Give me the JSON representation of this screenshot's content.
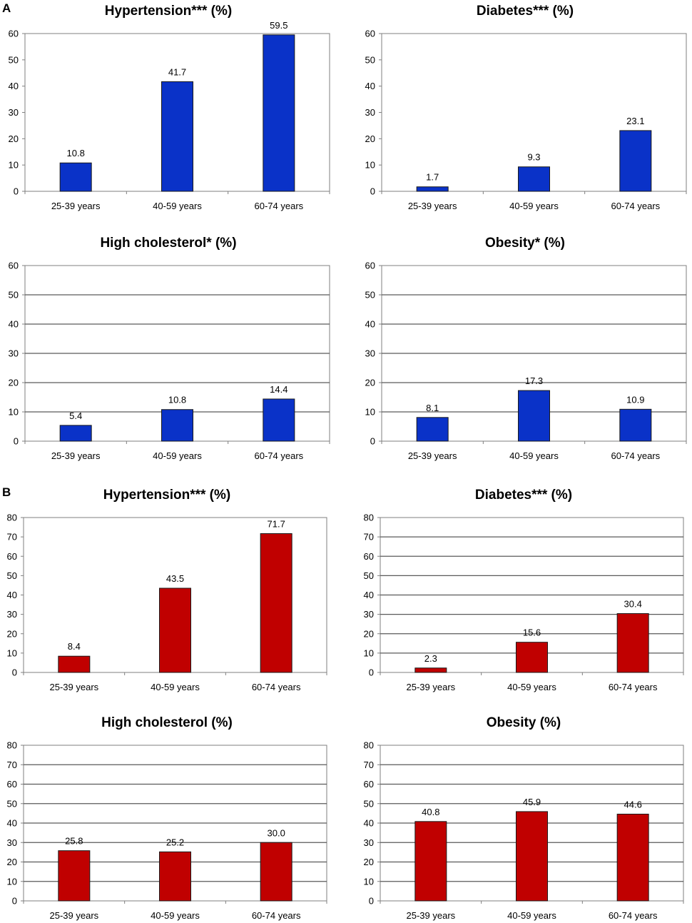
{
  "panels": [
    {
      "letter": "A",
      "bar_color": "#0a32c8"
    },
    {
      "letter": "B",
      "bar_color": "#c00000"
    }
  ],
  "chart_data": [
    {
      "panel": "A",
      "type": "bar",
      "title": "Hypertension*** (%)",
      "categories": [
        "25-39 years",
        "40-59 years",
        "60-74 years"
      ],
      "values": [
        10.8,
        41.7,
        59.5
      ],
      "value_labels": [
        "10.8",
        "41.7",
        "59.5"
      ],
      "ylim": [
        0,
        60
      ],
      "yticks": [
        0,
        10,
        20,
        30,
        40,
        50,
        60
      ],
      "grid": false,
      "xlabel": "",
      "ylabel": "",
      "color": "#0a32c8"
    },
    {
      "panel": "A",
      "type": "bar",
      "title": "Diabetes*** (%)",
      "categories": [
        "25-39 years",
        "40-59 years",
        "60-74 years"
      ],
      "values": [
        1.7,
        9.3,
        23.1
      ],
      "value_labels": [
        "1.7",
        "9.3",
        "23.1"
      ],
      "ylim": [
        0,
        60
      ],
      "yticks": [
        0,
        10,
        20,
        30,
        40,
        50,
        60
      ],
      "grid": false,
      "xlabel": "",
      "ylabel": "",
      "color": "#0a32c8"
    },
    {
      "panel": "A",
      "type": "bar",
      "title": "High cholesterol* (%)",
      "categories": [
        "25-39 years",
        "40-59 years",
        "60-74 years"
      ],
      "values": [
        5.4,
        10.8,
        14.4
      ],
      "value_labels": [
        "5.4",
        "10.8",
        "14.4"
      ],
      "ylim": [
        0,
        60
      ],
      "yticks": [
        0,
        10,
        20,
        30,
        40,
        50,
        60
      ],
      "grid": true,
      "xlabel": "",
      "ylabel": "",
      "color": "#0a32c8"
    },
    {
      "panel": "A",
      "type": "bar",
      "title": "Obesity* (%)",
      "categories": [
        "25-39 years",
        "40-59 years",
        "60-74 years"
      ],
      "values": [
        8.1,
        17.3,
        10.9
      ],
      "value_labels": [
        "8.1",
        "17.3",
        "10.9"
      ],
      "ylim": [
        0,
        60
      ],
      "yticks": [
        0,
        10,
        20,
        30,
        40,
        50,
        60
      ],
      "grid": true,
      "xlabel": "",
      "ylabel": "",
      "color": "#0a32c8"
    },
    {
      "panel": "B",
      "type": "bar",
      "title": "Hypertension*** (%)",
      "categories": [
        "25-39 years",
        "40-59 years",
        "60-74 years"
      ],
      "values": [
        8.4,
        43.5,
        71.7
      ],
      "value_labels": [
        "8.4",
        "43.5",
        "71.7"
      ],
      "ylim": [
        0,
        80
      ],
      "yticks": [
        0,
        10,
        20,
        30,
        40,
        50,
        60,
        70,
        80
      ],
      "grid": false,
      "xlabel": "",
      "ylabel": "",
      "color": "#c00000"
    },
    {
      "panel": "B",
      "type": "bar",
      "title": "Diabetes*** (%)",
      "categories": [
        "25-39 years",
        "40-59 years",
        "60-74 years"
      ],
      "values": [
        2.3,
        15.6,
        30.4
      ],
      "value_labels": [
        "2.3",
        "15.6",
        "30.4"
      ],
      "ylim": [
        0,
        80
      ],
      "yticks": [
        0,
        10,
        20,
        30,
        40,
        50,
        60,
        70,
        80
      ],
      "grid": true,
      "xlabel": "",
      "ylabel": "",
      "color": "#c00000"
    },
    {
      "panel": "B",
      "type": "bar",
      "title": "High cholesterol (%)",
      "categories": [
        "25-39 years",
        "40-59 years",
        "60-74 years"
      ],
      "values": [
        25.8,
        25.2,
        30.0
      ],
      "value_labels": [
        "25.8",
        "25.2",
        "30.0"
      ],
      "ylim": [
        0,
        80
      ],
      "yticks": [
        0,
        10,
        20,
        30,
        40,
        50,
        60,
        70,
        80
      ],
      "grid": true,
      "xlabel": "",
      "ylabel": "",
      "color": "#c00000"
    },
    {
      "panel": "B",
      "type": "bar",
      "title": "Obesity (%)",
      "categories": [
        "25-39 years",
        "40-59 years",
        "60-74 years"
      ],
      "values": [
        40.8,
        45.9,
        44.6
      ],
      "value_labels": [
        "40.8",
        "45.9",
        "44.6"
      ],
      "ylim": [
        0,
        80
      ],
      "yticks": [
        0,
        10,
        20,
        30,
        40,
        50,
        60,
        70,
        80
      ],
      "grid": true,
      "xlabel": "",
      "ylabel": "",
      "color": "#c00000"
    }
  ]
}
